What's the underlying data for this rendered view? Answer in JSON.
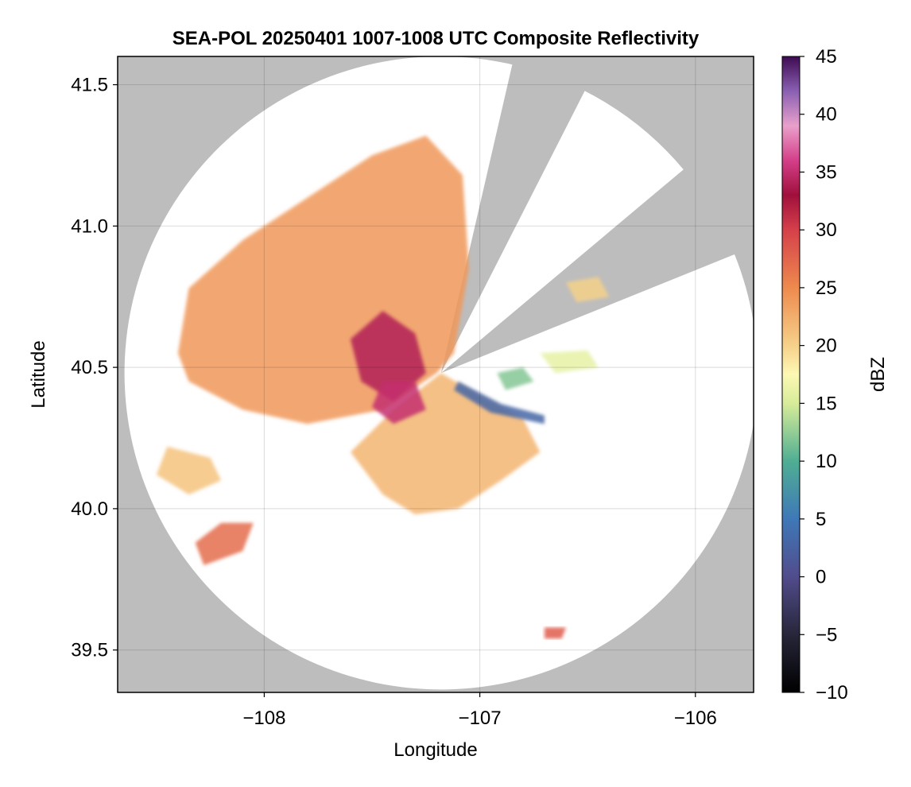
{
  "chart_data": {
    "type": "heatmap",
    "title": "SEA-POL 20250401 1007-1008 UTC Composite Reflectivity",
    "xlabel": "Longitude",
    "ylabel": "Latitude",
    "xlim": [
      -108.68,
      -105.73
    ],
    "ylim": [
      39.35,
      41.6
    ],
    "x_ticks": [
      -108,
      -107,
      -106
    ],
    "x_tick_labels": [
      "−108",
      "−107",
      "−106"
    ],
    "y_ticks": [
      39.5,
      40.0,
      40.5,
      41.0,
      41.5
    ],
    "y_tick_labels": [
      "39.5",
      "40.0",
      "40.5",
      "41.0",
      "41.5"
    ],
    "grid": true,
    "no_coverage_color": "#bdbdbd",
    "radar": {
      "center": [
        -107.18,
        40.48
      ],
      "range_lat_deg": 1.12,
      "blocked_sectors_deg_from_north": [
        [
          13,
          27
        ],
        [
          50,
          68
        ]
      ]
    },
    "colorbar": {
      "label": "dBZ",
      "range": [
        -10,
        45
      ],
      "ticks": [
        -10,
        -5,
        0,
        5,
        10,
        15,
        20,
        25,
        30,
        35,
        40,
        45
      ],
      "tick_labels": [
        "−10",
        "−5",
        "0",
        "5",
        "10",
        "15",
        "20",
        "25",
        "30",
        "35",
        "40",
        "45"
      ],
      "colormap": "Spectral_r-like",
      "stops": [
        {
          "value": -10,
          "color": "#000000"
        },
        {
          "value": -5,
          "color": "#27263a"
        },
        {
          "value": 0,
          "color": "#514c8c"
        },
        {
          "value": 5,
          "color": "#3f78b8"
        },
        {
          "value": 10,
          "color": "#4fae93"
        },
        {
          "value": 15,
          "color": "#d7ec99"
        },
        {
          "value": 17.5,
          "color": "#fdf8b4"
        },
        {
          "value": 20,
          "color": "#f6d18a"
        },
        {
          "value": 25,
          "color": "#ee8a4e"
        },
        {
          "value": 30,
          "color": "#d5404a"
        },
        {
          "value": 33,
          "color": "#a0103c"
        },
        {
          "value": 36,
          "color": "#d43f89"
        },
        {
          "value": 39,
          "color": "#e9a0cb"
        },
        {
          "value": 42,
          "color": "#8a5fb2"
        },
        {
          "value": 45,
          "color": "#3e0b52"
        }
      ]
    },
    "echo_regions": [
      {
        "name": "main-northwest-band",
        "polygon": [
          [
            -108.4,
            40.55
          ],
          [
            -108.35,
            40.78
          ],
          [
            -108.1,
            40.95
          ],
          [
            -107.8,
            41.1
          ],
          [
            -107.5,
            41.25
          ],
          [
            -107.25,
            41.32
          ],
          [
            -107.08,
            41.18
          ],
          [
            -107.05,
            40.85
          ],
          [
            -107.12,
            40.55
          ],
          [
            -107.2,
            40.48
          ],
          [
            -107.45,
            40.35
          ],
          [
            -107.8,
            40.3
          ],
          [
            -108.1,
            40.35
          ],
          [
            -108.35,
            40.45
          ]
        ],
        "mean_dbz": 24
      },
      {
        "name": "south-sector",
        "polygon": [
          [
            -107.6,
            40.2
          ],
          [
            -107.45,
            40.05
          ],
          [
            -107.3,
            39.98
          ],
          [
            -107.1,
            40.0
          ],
          [
            -106.9,
            40.1
          ],
          [
            -106.72,
            40.2
          ],
          [
            -106.8,
            40.32
          ],
          [
            -107.0,
            40.4
          ],
          [
            -107.18,
            40.48
          ],
          [
            -107.4,
            40.35
          ]
        ],
        "mean_dbz": 22
      },
      {
        "name": "core-central",
        "polygon": [
          [
            -107.6,
            40.6
          ],
          [
            -107.45,
            40.7
          ],
          [
            -107.3,
            40.62
          ],
          [
            -107.25,
            40.48
          ],
          [
            -107.4,
            40.38
          ],
          [
            -107.55,
            40.45
          ]
        ],
        "mean_dbz": 34
      },
      {
        "name": "core-south",
        "polygon": [
          [
            -107.45,
            40.45
          ],
          [
            -107.3,
            40.45
          ],
          [
            -107.25,
            40.35
          ],
          [
            -107.4,
            40.3
          ],
          [
            -107.5,
            40.36
          ]
        ],
        "mean_dbz": 35
      },
      {
        "name": "far-west-cell",
        "polygon": [
          [
            -108.45,
            40.22
          ],
          [
            -108.25,
            40.18
          ],
          [
            -108.2,
            40.1
          ],
          [
            -108.35,
            40.05
          ],
          [
            -108.5,
            40.12
          ]
        ],
        "mean_dbz": 21
      },
      {
        "name": "southwest-cell",
        "polygon": [
          [
            -108.2,
            39.95
          ],
          [
            -108.05,
            39.95
          ],
          [
            -108.1,
            39.85
          ],
          [
            -108.28,
            39.8
          ],
          [
            -108.32,
            39.88
          ]
        ],
        "mean_dbz": 27
      },
      {
        "name": "east-cell-1",
        "polygon": [
          [
            -106.92,
            40.48
          ],
          [
            -106.8,
            40.5
          ],
          [
            -106.75,
            40.45
          ],
          [
            -106.88,
            40.42
          ]
        ],
        "mean_dbz": 12
      },
      {
        "name": "east-cell-2",
        "polygon": [
          [
            -106.72,
            40.55
          ],
          [
            -106.5,
            40.56
          ],
          [
            -106.45,
            40.5
          ],
          [
            -106.65,
            40.48
          ]
        ],
        "mean_dbz": 16
      },
      {
        "name": "northeast-cell",
        "polygon": [
          [
            -106.6,
            40.8
          ],
          [
            -106.45,
            40.82
          ],
          [
            -106.4,
            40.75
          ],
          [
            -106.55,
            40.73
          ]
        ],
        "mean_dbz": 20
      },
      {
        "name": "east-line",
        "polygon": [
          [
            -107.1,
            40.45
          ],
          [
            -106.9,
            40.37
          ],
          [
            -106.7,
            40.33
          ],
          [
            -106.7,
            40.3
          ],
          [
            -106.95,
            40.34
          ],
          [
            -107.12,
            40.42
          ]
        ],
        "mean_dbz": 3
      },
      {
        "name": "south-small-cell",
        "polygon": [
          [
            -106.7,
            39.58
          ],
          [
            -106.6,
            39.58
          ],
          [
            -106.62,
            39.54
          ],
          [
            -106.7,
            39.54
          ]
        ],
        "mean_dbz": 28
      }
    ]
  }
}
